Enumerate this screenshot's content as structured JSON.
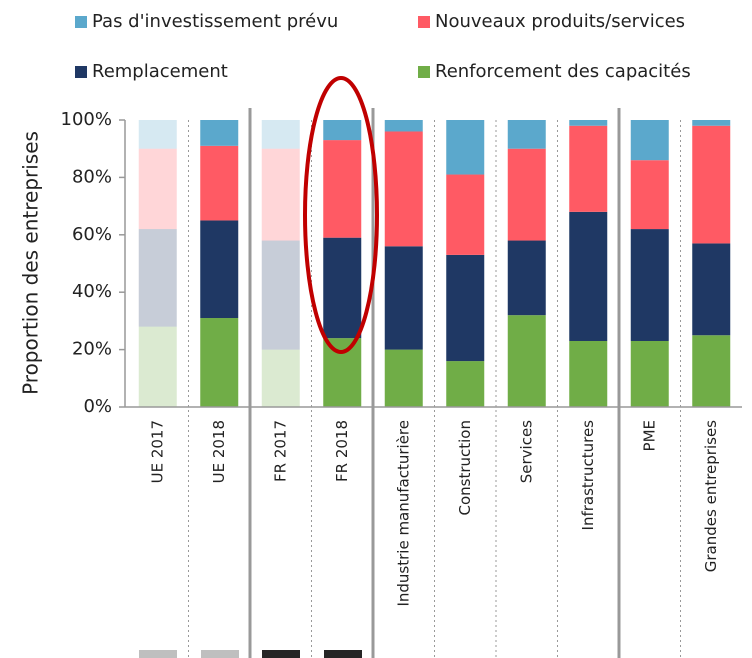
{
  "chart_data": {
    "type": "stacked_bar",
    "y_label": "Proportion des entreprises",
    "categories": [
      "UE 2017",
      "UE 2018",
      "FR 2017",
      "FR 2018",
      "Industrie manufacturière",
      "Construction",
      "Services",
      "Infrastructures",
      "PME",
      "Grandes entreprises"
    ],
    "opacity": [
      0.25,
      1,
      0.25,
      1,
      1,
      1,
      1,
      1,
      1,
      1
    ],
    "series": [
      {
        "name": "Renforcement des capacités",
        "color": "#70ad47",
        "values": [
          28,
          31,
          20,
          24,
          20,
          16,
          32,
          23,
          23,
          25
        ]
      },
      {
        "name": "Remplacement",
        "color": "#1f3864",
        "values": [
          34,
          34,
          38,
          35,
          36,
          37,
          26,
          45,
          39,
          32
        ]
      },
      {
        "name": "Nouveaux produits/services",
        "color": "#ff5a64",
        "values": [
          28,
          26,
          32,
          34,
          40,
          28,
          32,
          30,
          24,
          41
        ]
      },
      {
        "name": "Pas d'investissement prévu",
        "color": "#5ba8cc",
        "values": [
          10,
          9,
          10,
          7,
          4,
          19,
          10,
          2,
          14,
          2
        ]
      }
    ],
    "ylim": [
      0,
      100
    ],
    "yticks": [
      {
        "value": 0,
        "label": "0%"
      },
      {
        "value": 20,
        "label": "20%"
      },
      {
        "value": 40,
        "label": "40%"
      },
      {
        "value": 60,
        "label": "60%"
      },
      {
        "value": 80,
        "label": "80%"
      },
      {
        "value": 100,
        "label": "100%"
      }
    ]
  }
}
